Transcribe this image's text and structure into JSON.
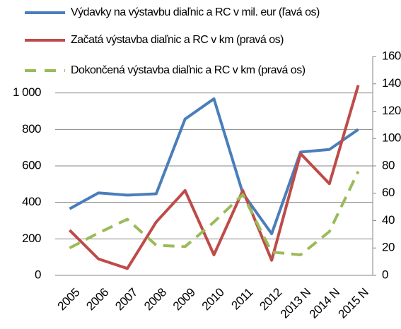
{
  "chart_data": {
    "type": "line",
    "categories": [
      "2005",
      "2006",
      "2007",
      "2008",
      "2009",
      "2010",
      "2011",
      "2012",
      "2013 N",
      "2014 N",
      "2015 N"
    ],
    "series": [
      {
        "name": "Výdavky na výstavbu diaľnic a RC v mil. eur (ľavá os)",
        "color": "#4a7ebb",
        "values": [
          365,
          452,
          440,
          447,
          857,
          968,
          450,
          228,
          676,
          690,
          800
        ]
      },
      {
        "name": "Začatá výstavba diaľnic a RC v km (pravá os)",
        "color": "#be4b48",
        "axis": "y2",
        "values": [
          33,
          12,
          5,
          39,
          62,
          15,
          62,
          11,
          89,
          67,
          139
        ]
      },
      {
        "name": "Dokončená výstavba diaľnic a RC v km  (pravá os)",
        "color": "#9bbb59",
        "axis": "y2",
        "dashed": true,
        "values": [
          20,
          31,
          41,
          22,
          21,
          39,
          59,
          17,
          15,
          32,
          76
        ]
      }
    ],
    "ylim": [
      0,
      1200
    ],
    "yticks": [
      0,
      200,
      400,
      600,
      800,
      {
        "value": 1000,
        "label": "1 000"
      }
    ],
    "y2lim": [
      0,
      160
    ],
    "y2ticks": [
      0,
      20,
      40,
      60,
      80,
      100,
      120,
      140,
      160
    ],
    "grid": true
  }
}
